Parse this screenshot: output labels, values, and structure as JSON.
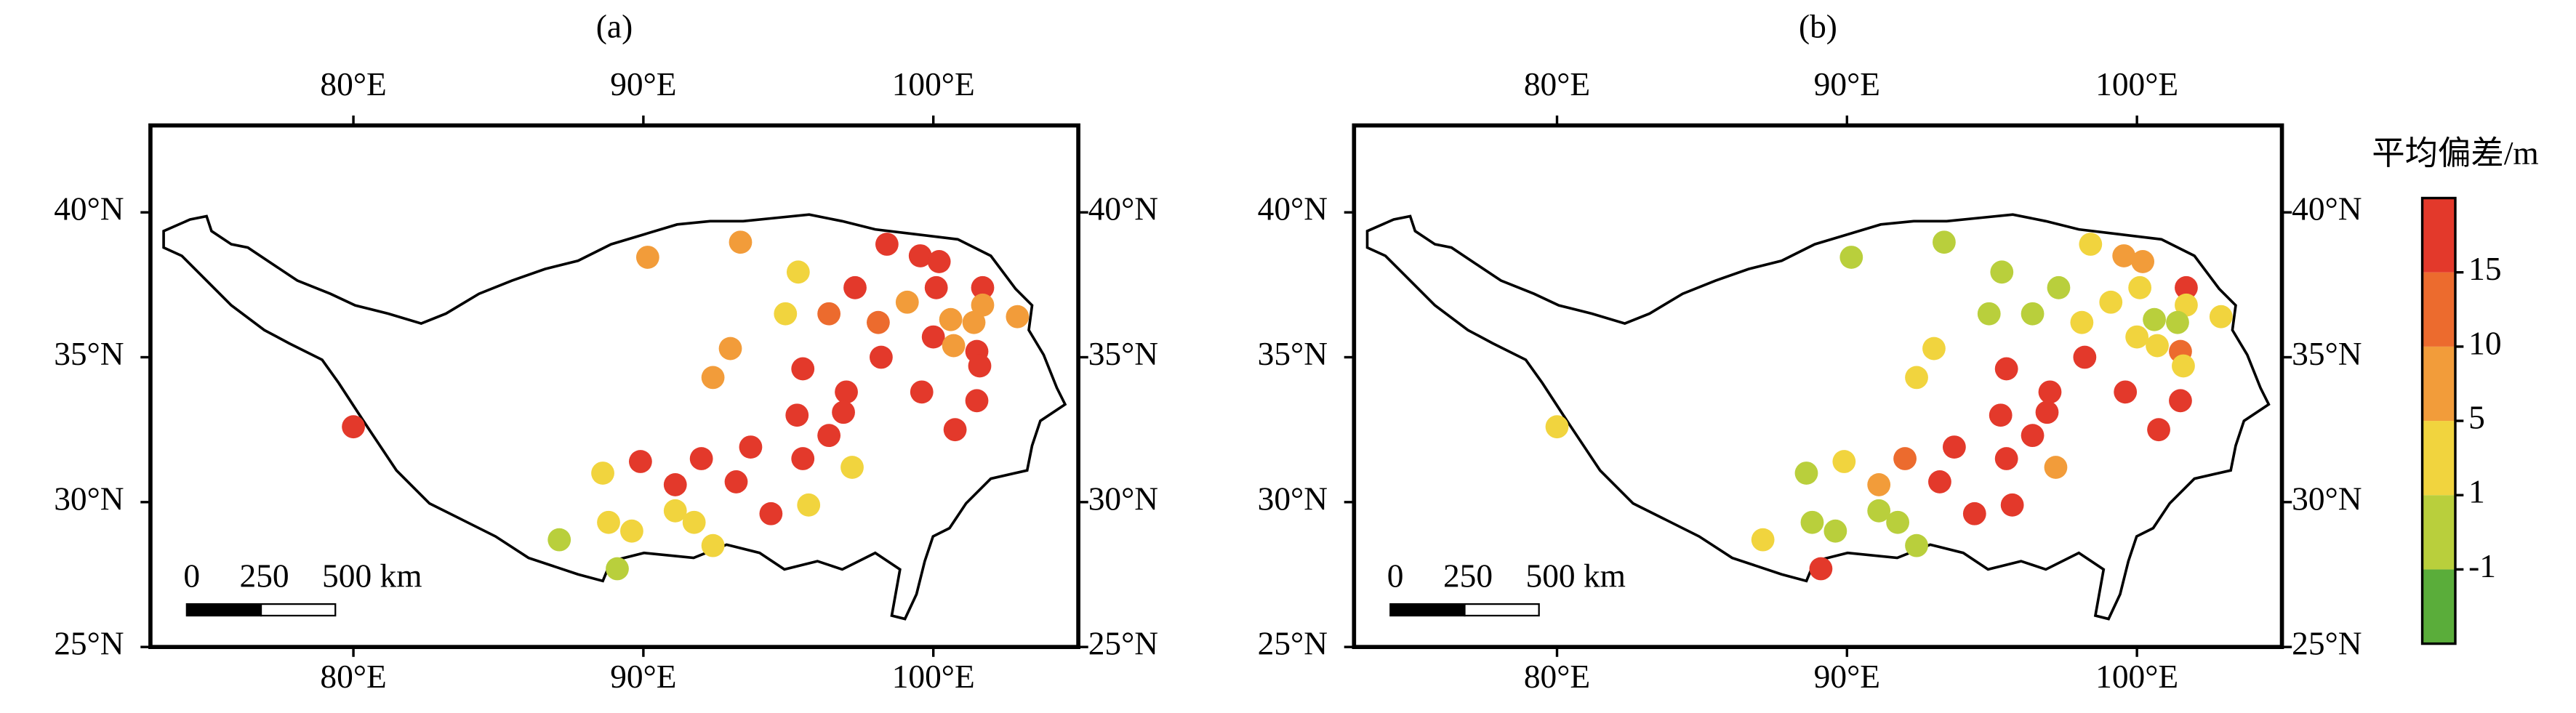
{
  "xlim": [
    73,
    105
  ],
  "ylim": [
    25,
    43
  ],
  "xticks": [
    {
      "value": 80,
      "label": "80°E"
    },
    {
      "value": 90,
      "label": "90°E"
    },
    {
      "value": 100,
      "label": "100°E"
    }
  ],
  "yticks": [
    {
      "value": 25,
      "label": "25°N"
    },
    {
      "value": 30,
      "label": "30°N"
    },
    {
      "value": 35,
      "label": "35°N"
    },
    {
      "value": 40,
      "label": "40°N"
    }
  ],
  "stations": {
    "lon": [
      80.0,
      90.15,
      93.35,
      95.34,
      98.4,
      99.55,
      100.2,
      97.3,
      99.1,
      94.9,
      96.4,
      100.1,
      101.7,
      100.6,
      101.7,
      102.9,
      101.4,
      100.0,
      100.7,
      98.1,
      93.0,
      95.5,
      98.2,
      101.5,
      101.6,
      92.4,
      97.0,
      99.6,
      101.5,
      95.3,
      96.9,
      96.4,
      100.75,
      93.7,
      92.0,
      89.9,
      95.5,
      97.2,
      88.6,
      93.2,
      91.1,
      95.7,
      94.4,
      91.1,
      88.8,
      91.75,
      89.6,
      92.4,
      87.1,
      89.1
    ],
    "lat": [
      32.6,
      38.45,
      38.97,
      37.94,
      38.9,
      38.5,
      38.3,
      37.4,
      36.9,
      36.5,
      36.5,
      37.4,
      37.4,
      36.3,
      36.8,
      36.4,
      36.2,
      35.7,
      35.4,
      36.2,
      35.3,
      34.6,
      35.0,
      35.2,
      34.7,
      34.3,
      33.8,
      33.8,
      33.5,
      33.0,
      33.1,
      32.3,
      32.5,
      31.9,
      31.5,
      31.4,
      31.5,
      31.2,
      31.0,
      30.7,
      30.6,
      29.9,
      29.6,
      29.7,
      29.3,
      29.3,
      29.0,
      28.5,
      28.7,
      27.7
    ]
  },
  "panels": [
    {
      "title": "(a)",
      "values": [
        18,
        7,
        7,
        3,
        18,
        18,
        18,
        18,
        7,
        3,
        12,
        18,
        18,
        7,
        7,
        7,
        7,
        18,
        7,
        12,
        7,
        18,
        18,
        18,
        18,
        7,
        18,
        18,
        18,
        18,
        18,
        18,
        18,
        18,
        18,
        18,
        18,
        3,
        3,
        18,
        18,
        3,
        18,
        3,
        3,
        3,
        3,
        3,
        0,
        0
      ]
    },
    {
      "title": "(b)",
      "values": [
        3,
        0,
        0,
        0,
        3,
        7,
        7,
        0,
        3,
        0,
        0,
        3,
        18,
        0,
        3,
        3,
        0,
        3,
        3,
        3,
        3,
        18,
        18,
        12,
        3,
        3,
        18,
        18,
        18,
        18,
        18,
        18,
        18,
        18,
        12,
        3,
        18,
        7,
        0,
        18,
        7,
        18,
        18,
        0,
        0,
        0,
        0,
        0,
        3,
        18
      ]
    }
  ],
  "scale_bar": {
    "labels": [
      "0",
      "250",
      "500 km"
    ]
  },
  "colorbar": {
    "title": "平均偏差/m",
    "boundaries": [
      -1,
      1,
      5,
      10,
      15
    ],
    "colors": [
      "#5aad3a",
      "#b9cf3c",
      "#f1d43e",
      "#f29c3a",
      "#ec6b2e",
      "#e3392b"
    ]
  }
}
